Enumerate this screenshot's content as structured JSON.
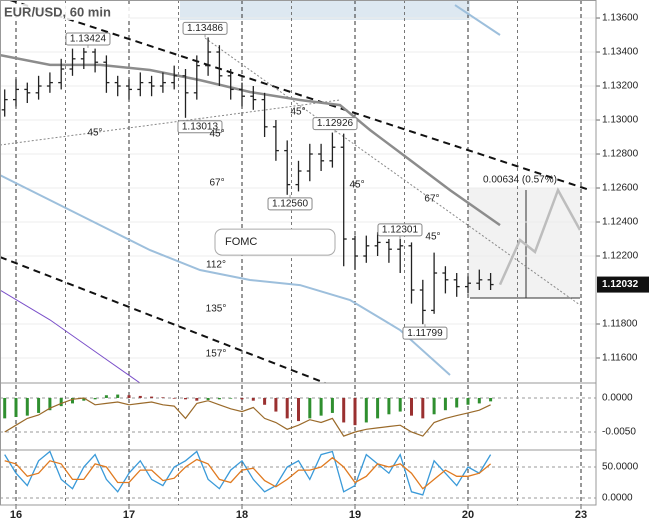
{
  "chart_data": {
    "type": "ohlc",
    "title": "EUR/USD, 60 min",
    "bar_color": "#222222",
    "xlim": [
      -0.1416,
      5.1327
    ],
    "xticks": [
      {
        "value": 0,
        "label": "16"
      },
      {
        "value": 1,
        "label": "17"
      },
      {
        "value": 2,
        "label": "18"
      },
      {
        "value": 3,
        "label": "19"
      },
      {
        "value": 4,
        "label": "20"
      },
      {
        "value": 5,
        "label": "23"
      }
    ],
    "ylim": [
      1.11453,
      1.13706
    ],
    "yticks": [
      {
        "value": 1.136,
        "label": "1.13600"
      },
      {
        "value": 1.134,
        "label": "1.13400"
      },
      {
        "value": 1.132,
        "label": "1.13200"
      },
      {
        "value": 1.13,
        "label": "1.13000"
      },
      {
        "value": 1.128,
        "label": "1.12800"
      },
      {
        "value": 1.126,
        "label": "1.12600"
      },
      {
        "value": 1.124,
        "label": "1.12400"
      },
      {
        "value": 1.122,
        "label": "1.12200"
      },
      {
        "value": 1.118,
        "label": "1.11800"
      },
      {
        "value": 1.116,
        "label": "1.11600"
      }
    ],
    "grid": true,
    "last_price": {
      "value": 1.12032,
      "label": "1.12032"
    },
    "x": [
      -0.1,
      0,
      0.1,
      0.2,
      0.3,
      0.4,
      0.5,
      0.6,
      0.7,
      0.8,
      0.9,
      1,
      1.1,
      1.2,
      1.3,
      1.4,
      1.5,
      1.6,
      1.7,
      1.8,
      1.9,
      2,
      2.1,
      2.2,
      2.3,
      2.4,
      2.5,
      2.6,
      2.7,
      2.8,
      2.9,
      3,
      3.1,
      3.2,
      3.3,
      3.4,
      3.5,
      3.6,
      3.7,
      3.8,
      3.9,
      4,
      4.1,
      4.2
    ],
    "open": [
      1.1306,
      1.1312,
      1.1318,
      1.1316,
      1.132,
      1.1322,
      1.133,
      1.1336,
      1.134,
      1.1334,
      1.1322,
      1.132,
      1.1318,
      1.1322,
      1.132,
      1.1322,
      1.1326,
      1.1316,
      1.1332,
      1.134,
      1.1326,
      1.1318,
      1.1314,
      1.1312,
      1.1296,
      1.1282,
      1.1262,
      1.127,
      1.128,
      1.1276,
      1.1284,
      1.123,
      1.122,
      1.1226,
      1.1228,
      1.1224,
      1.1226,
      1.12,
      1.1188,
      1.121,
      1.1206,
      1.1202,
      1.1204,
      1.1206
    ],
    "high": [
      1.1318,
      1.1324,
      1.1322,
      1.1326,
      1.1328,
      1.1336,
      1.1342,
      1.13424,
      1.1342,
      1.1338,
      1.1326,
      1.1324,
      1.1328,
      1.1326,
      1.1328,
      1.1332,
      1.133,
      1.1338,
      1.13486,
      1.1344,
      1.133,
      1.1322,
      1.132,
      1.1316,
      1.13,
      1.1288,
      1.1276,
      1.1286,
      1.1286,
      1.12926,
      1.1292,
      1.1232,
      1.1232,
      1.1234,
      1.123,
      1.12301,
      1.1228,
      1.1206,
      1.1222,
      1.1214,
      1.121,
      1.1208,
      1.1212,
      1.121
    ],
    "low": [
      1.1302,
      1.1308,
      1.131,
      1.1312,
      1.1316,
      1.1318,
      1.1326,
      1.133,
      1.1328,
      1.1316,
      1.1314,
      1.1312,
      1.1314,
      1.1314,
      1.1316,
      1.1318,
      1.13013,
      1.1312,
      1.1326,
      1.132,
      1.1312,
      1.1308,
      1.1306,
      1.129,
      1.1276,
      1.1256,
      1.1258,
      1.1264,
      1.127,
      1.1272,
      1.1214,
      1.1212,
      1.1216,
      1.122,
      1.1216,
      1.121,
      1.1192,
      1.11799,
      1.1186,
      1.1198,
      1.1196,
      1.1198,
      1.12,
      1.12
    ],
    "close": [
      1.1312,
      1.1318,
      1.1316,
      1.132,
      1.1322,
      1.133,
      1.1336,
      1.134,
      1.1334,
      1.1322,
      1.132,
      1.1318,
      1.1322,
      1.132,
      1.1322,
      1.1326,
      1.1316,
      1.1332,
      1.134,
      1.1326,
      1.1318,
      1.1314,
      1.1312,
      1.1296,
      1.1282,
      1.1262,
      1.127,
      1.128,
      1.1276,
      1.1284,
      1.123,
      1.122,
      1.1226,
      1.1228,
      1.1224,
      1.1226,
      1.12,
      1.1188,
      1.121,
      1.1206,
      1.1202,
      1.1204,
      1.1206,
      1.12032
    ],
    "lines": [
      {
        "color": "#111111",
        "style": "dashed",
        "width": 2,
        "points": [
          [
            -0.053,
            1.13706
          ],
          [
            5.08,
            1.12588
          ]
        ]
      },
      {
        "color": "#111111",
        "style": "dashed",
        "width": 2,
        "points": [
          [
            -0.142,
            1.12194
          ],
          [
            2.735,
            1.11453
          ]
        ]
      },
      {
        "color": "#888888",
        "style": "dotted",
        "width": 1,
        "points": [
          [
            -0.142,
            1.12853
          ],
          [
            2.867,
            1.13118
          ]
        ]
      },
      {
        "color": "#888888",
        "style": "dotted",
        "width": 1,
        "points": [
          [
            1.673,
            1.13482
          ],
          [
            4.991,
            1.11912
          ]
        ]
      },
      {
        "color": "#8c8c8c",
        "style": "solid",
        "width": 2.5,
        "points": [
          [
            -0.142,
            1.13382
          ],
          [
            0.301,
            1.13324
          ],
          [
            0.743,
            1.13324
          ],
          [
            1.186,
            1.13294
          ],
          [
            1.628,
            1.13235
          ],
          [
            2.071,
            1.13165
          ],
          [
            2.513,
            1.13118
          ],
          [
            2.867,
            1.13088
          ],
          [
            3.133,
            1.12941
          ],
          [
            3.487,
            1.12765
          ],
          [
            3.841,
            1.12588
          ],
          [
            4.283,
            1.12382
          ]
        ]
      },
      {
        "color": "#9dbfdc",
        "style": "solid",
        "width": 2,
        "points": [
          [
            3.885,
            1.13676
          ],
          [
            4.283,
            1.135
          ]
        ]
      },
      {
        "color": "#9dbfdc",
        "style": "solid",
        "width": 2,
        "points": [
          [
            -0.142,
            1.12676
          ],
          [
            0.301,
            1.12529
          ],
          [
            0.743,
            1.12382
          ],
          [
            1.186,
            1.12235
          ],
          [
            1.628,
            1.12118
          ],
          [
            2.071,
            1.12059
          ],
          [
            2.513,
            1.12029
          ],
          [
            2.956,
            1.11941
          ],
          [
            3.398,
            1.11765
          ],
          [
            3.841,
            1.115
          ]
        ]
      },
      {
        "color": "#7a4fc9",
        "style": "solid",
        "width": 1,
        "points": [
          [
            -0.142,
            1.12
          ],
          [
            0.301,
            1.11824
          ],
          [
            0.743,
            1.11618
          ],
          [
            1.097,
            1.11453
          ]
        ]
      },
      {
        "color": "#bdbdbd",
        "style": "solid",
        "width": 2.5,
        "points": [
          [
            4.283,
            1.12032
          ],
          [
            4.46,
            1.12294
          ],
          [
            4.593,
            1.12224
          ],
          [
            4.796,
            1.12588
          ],
          [
            4.991,
            1.12353
          ]
        ]
      }
    ],
    "price_labels": [
      {
        "text": "1.13424",
        "x": 0.637,
        "y": 1.13424,
        "position": "above"
      },
      {
        "text": "1.13486",
        "x": 1.673,
        "y": 1.13486,
        "position": "above"
      },
      {
        "text": "1.13013",
        "x": 1.628,
        "y": 1.13013,
        "position": "below"
      },
      {
        "text": "1.12926",
        "x": 2.823,
        "y": 1.12926,
        "position": "above"
      },
      {
        "text": "1.12560",
        "x": 2.425,
        "y": 1.1256,
        "position": "below"
      },
      {
        "text": "1.12301",
        "x": 3.398,
        "y": 1.12301,
        "position": "above"
      },
      {
        "text": "1.11799",
        "x": 3.619,
        "y": 1.11799,
        "position": "below"
      }
    ],
    "annotations": [
      {
        "text": "45°",
        "x": 0.699,
        "y": 1.12924
      },
      {
        "text": "45°",
        "x": 1.779,
        "y": 1.12918
      },
      {
        "text": "45°",
        "x": 2.496,
        "y": 1.13047
      },
      {
        "text": "45°",
        "x": 3.018,
        "y": 1.12618
      },
      {
        "text": "45°",
        "x": 3.69,
        "y": 1.12312
      },
      {
        "text": "67°",
        "x": 1.779,
        "y": 1.12629
      },
      {
        "text": "67°",
        "x": 3.681,
        "y": 1.12535
      },
      {
        "text": "112°",
        "x": 1.77,
        "y": 1.12147
      },
      {
        "text": "135°",
        "x": 1.77,
        "y": 1.11888
      },
      {
        "text": "157°",
        "x": 1.77,
        "y": 1.11624
      },
      {
        "text": "0.00634 (0.57%)",
        "x": 4.46,
        "y": 1.12647
      }
    ],
    "callout": {
      "text": "FOMC",
      "x": 2.292,
      "y": 1.12282
    },
    "macd": {
      "ylim": [
        -0.00765,
        0.0022
      ],
      "yticks": [
        {
          "value": 0,
          "label": "0.0000"
        },
        {
          "value": -0.005,
          "label": "-0.0050"
        }
      ],
      "colors": {
        "up": "#2f8f2f",
        "down": "#9a3030",
        "signal": "#9a6a2a"
      },
      "histogram": [
        -0.003,
        -0.0028,
        -0.0026,
        -0.0022,
        -0.0018,
        -0.0012,
        -0.0008,
        -0.0004,
        -0.0002,
        0.0004,
        0.0005,
        0.0004,
        0.0003,
        0.0002,
        0.0001,
        -0.0001,
        -0.0002,
        -0.0004,
        -0.0003,
        -0.0002,
        -0.0001,
        -0.0002,
        -0.0004,
        -0.001,
        -0.002,
        -0.003,
        -0.0034,
        -0.003,
        -0.0026,
        -0.0022,
        -0.0036,
        -0.004,
        -0.0036,
        -0.003,
        -0.0024,
        -0.002,
        -0.0026,
        -0.003,
        -0.0024,
        -0.0018,
        -0.0014,
        -0.001,
        -0.0008,
        -0.0005
      ],
      "signal": [
        -0.005,
        -0.004,
        -0.003,
        -0.0025,
        -0.0015,
        -0.0008,
        -0.0002,
        0,
        -0.001,
        -0.0008,
        -0.0006,
        -0.001,
        -0.0008,
        -0.0006,
        -0.001,
        -0.0012,
        -0.003,
        -0.0008,
        -0.0004,
        -0.001,
        -0.0016,
        -0.002,
        -0.0014,
        -0.003,
        -0.0036,
        -0.0046,
        -0.004,
        -0.0032,
        -0.0036,
        -0.003,
        -0.0056,
        -0.005,
        -0.0046,
        -0.0044,
        -0.0042,
        -0.004,
        -0.005,
        -0.0056,
        -0.0036,
        -0.003,
        -0.0026,
        -0.0022,
        -0.0018,
        -0.001
      ]
    },
    "stochastic": {
      "ylim": [
        -11.3,
        77.4
      ],
      "yticks": [
        {
          "value": 50,
          "label": "50.0000"
        },
        {
          "value": 0,
          "label": "0.0000"
        }
      ],
      "series": [
        {
          "color": "#3a9ad9",
          "values": [
            70,
            40,
            20,
            60,
            75,
            30,
            15,
            50,
            70,
            30,
            10,
            40,
            60,
            30,
            20,
            50,
            60,
            75,
            30,
            15,
            45,
            60,
            30,
            10,
            20,
            50,
            60,
            30,
            70,
            75,
            10,
            20,
            70,
            55,
            40,
            70,
            10,
            5,
            60,
            40,
            20,
            50,
            40,
            70
          ]
        },
        {
          "color": "#e07a20",
          "values": [
            60,
            55,
            35,
            40,
            60,
            55,
            30,
            30,
            55,
            50,
            25,
            25,
            45,
            45,
            28,
            32,
            50,
            62,
            55,
            30,
            25,
            45,
            48,
            28,
            18,
            30,
            45,
            45,
            50,
            65,
            50,
            25,
            35,
            55,
            50,
            55,
            40,
            15,
            30,
            45,
            35,
            35,
            40,
            55
          ]
        }
      ]
    }
  }
}
